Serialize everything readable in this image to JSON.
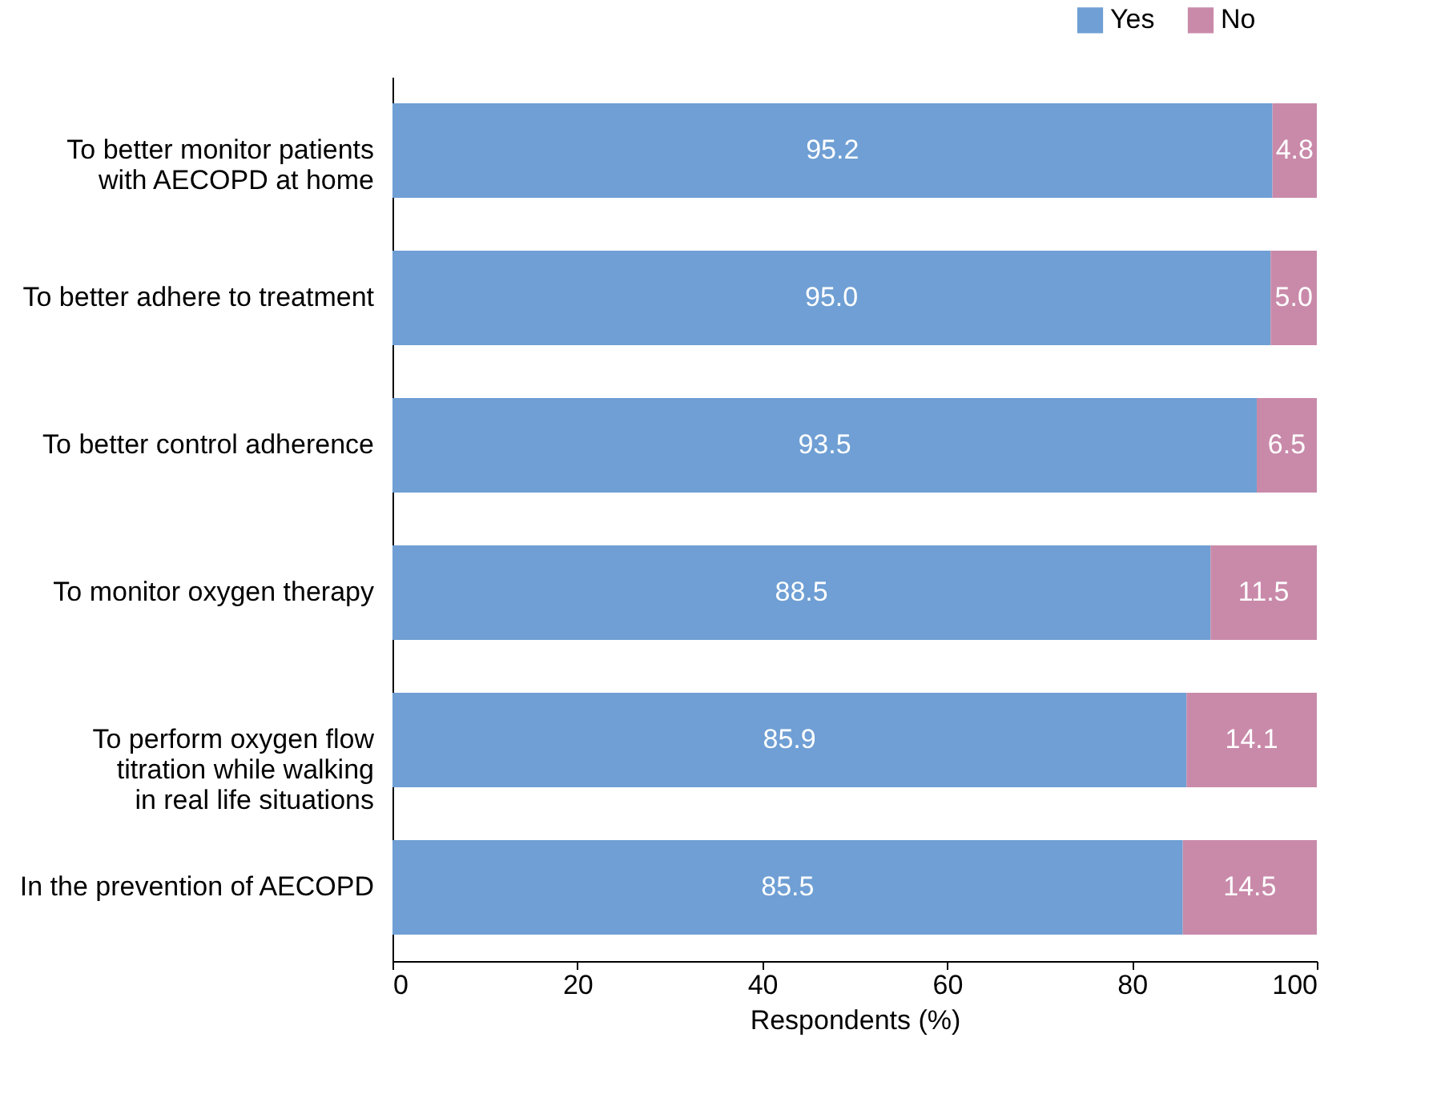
{
  "chart_data": {
    "type": "bar",
    "orientation": "horizontal",
    "stacked": true,
    "xlabel": "Respondents (%)",
    "categories": [
      "To better monitor patients\nwith AECOPD at home",
      "To better adhere to treatment",
      "To better control adherence",
      "To monitor oxygen therapy",
      "To perform oxygen flow\ntitration while walking\nin real life situations",
      "In the prevention of AECOPD"
    ],
    "series": [
      {
        "name": "Yes",
        "color": "#6f9fd4",
        "values": [
          95.2,
          95.0,
          93.5,
          88.5,
          85.9,
          85.5
        ],
        "value_labels": [
          "95.2",
          "95.0",
          "93.5",
          "88.5",
          "85.9",
          "85.5"
        ]
      },
      {
        "name": "No",
        "color": "#c98aaa",
        "values": [
          4.8,
          5.0,
          6.5,
          11.5,
          14.1,
          14.5
        ],
        "value_labels": [
          "4.8",
          "5.0",
          "6.5",
          "11.5",
          "14.1",
          "14.5"
        ]
      }
    ],
    "xlim": [
      0,
      100
    ],
    "xticks": [
      0,
      20,
      40,
      60,
      80,
      100
    ],
    "grid": false,
    "legend": "top right"
  }
}
